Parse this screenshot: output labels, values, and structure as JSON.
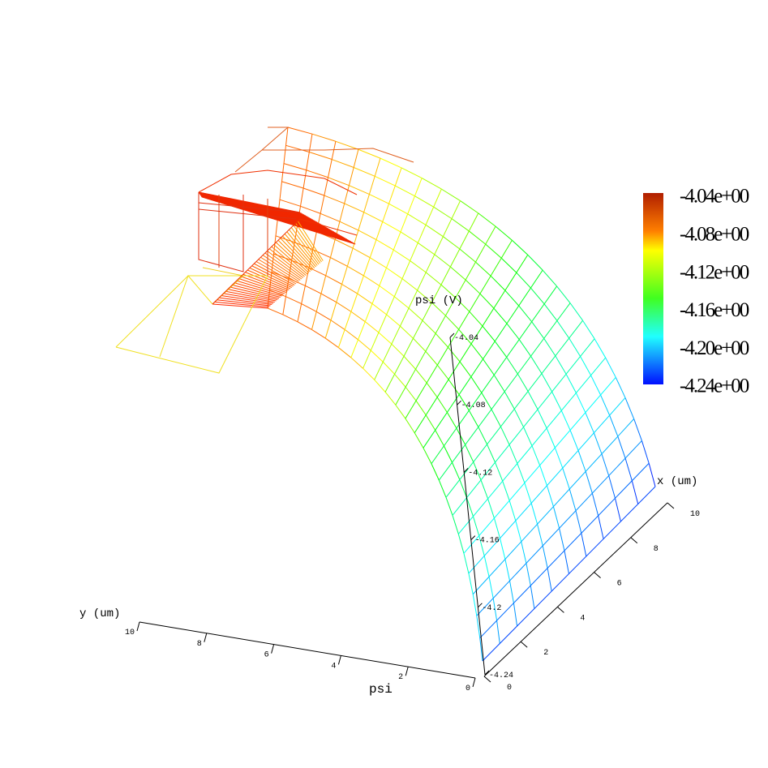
{
  "chart_data": {
    "type": "surface3d",
    "title": "psi",
    "zlabel": "psi (V)",
    "xlabel": "x (um)",
    "ylabel": "y (um)",
    "xlim": [
      0,
      10
    ],
    "xticks": [
      0,
      2,
      4,
      6,
      8,
      10
    ],
    "ylim": [
      0,
      10
    ],
    "yticks": [
      0,
      2,
      4,
      6,
      8,
      10
    ],
    "zlim": [
      -4.24,
      -4.04
    ],
    "zticks": [
      -4.04,
      -4.08,
      -4.12,
      -4.16,
      -4.2,
      -4.24
    ],
    "colorbar": {
      "lim": [
        -4.24,
        -4.04
      ],
      "ticks": [
        {
          "value": -4.04,
          "label": "-4.04e+00"
        },
        {
          "value": -4.08,
          "label": "-4.08e+00"
        },
        {
          "value": -4.12,
          "label": "-4.12e+00"
        },
        {
          "value": -4.16,
          "label": "-4.16e+00"
        },
        {
          "value": -4.2,
          "label": "-4.20e+00"
        },
        {
          "value": -4.24,
          "label": "-4.24e+00"
        }
      ]
    }
  }
}
